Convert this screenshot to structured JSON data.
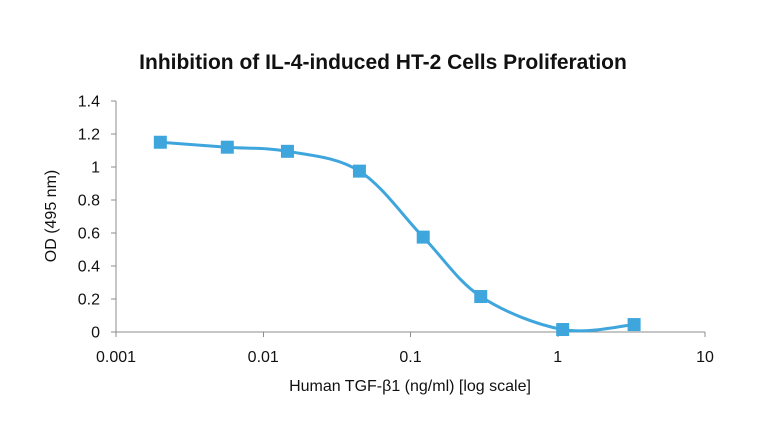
{
  "chart_data": {
    "type": "line",
    "title": "Inhibition of IL-4-induced HT-2 Cells Proliferation",
    "xlabel": "Human TGF-β1 (ng/ml) [log scale]",
    "ylabel": "OD (495 nm)",
    "x_scale": "log",
    "xlim": [
      0.001,
      10
    ],
    "ylim": [
      0,
      1.4
    ],
    "x_ticks": [
      0.001,
      0.01,
      0.1,
      1,
      10
    ],
    "x_tick_labels": [
      "0.001",
      "0.01",
      "0.1",
      "1",
      "10"
    ],
    "y_ticks": [
      0,
      0.2,
      0.4,
      0.6,
      0.8,
      1,
      1.2,
      1.4
    ],
    "y_tick_labels": [
      "0",
      "0.2",
      "0.4",
      "0.6",
      "0.8",
      "1",
      "1.2",
      "1.4"
    ],
    "grid": false,
    "legend": false,
    "series": [
      {
        "color": "#3fa6dd",
        "marker": "square",
        "smooth": true,
        "x": [
          0.002,
          0.0057,
          0.0146,
          0.045,
          0.122,
          0.3,
          1.08,
          3.3
        ],
        "y": [
          1.15,
          1.12,
          1.095,
          0.975,
          0.575,
          0.215,
          0.015,
          0.045
        ]
      }
    ]
  }
}
